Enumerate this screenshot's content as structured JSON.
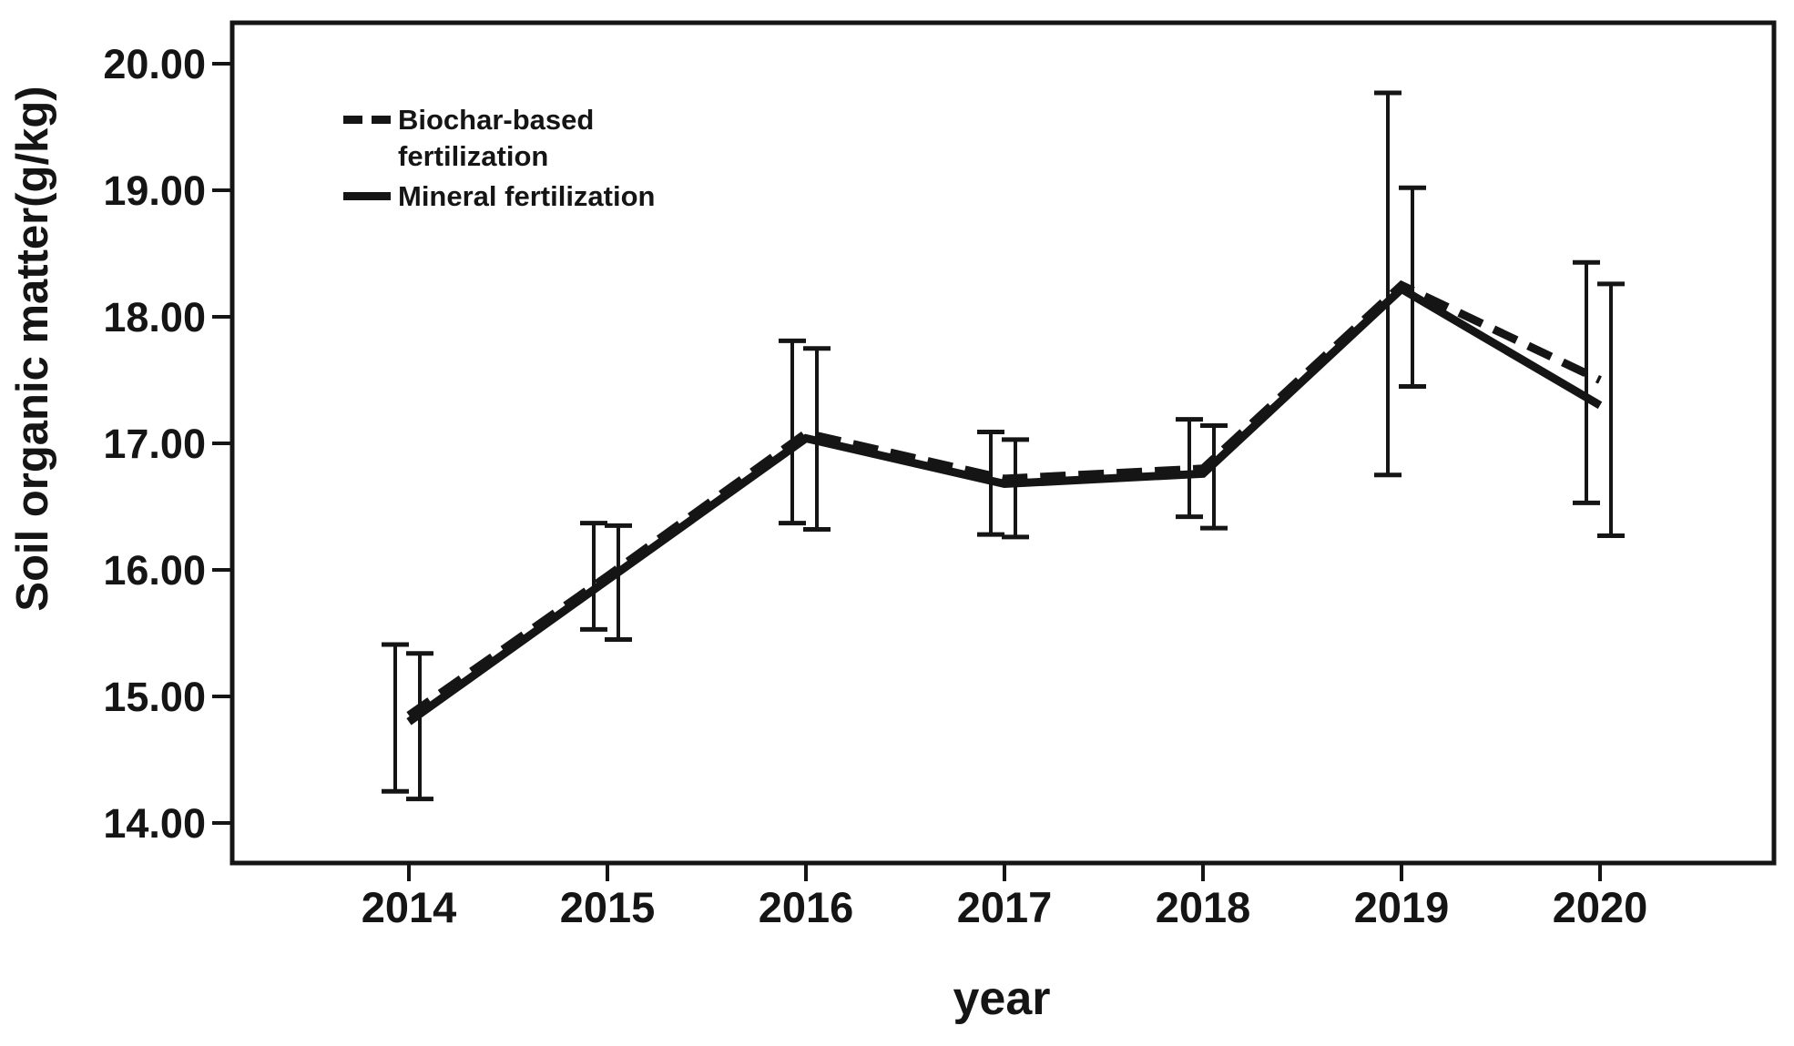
{
  "style": {
    "ink": "#151515",
    "background": "#ffffff"
  },
  "chart_data": {
    "type": "line",
    "title": "",
    "xlabel": "year",
    "ylabel": "Soil organic matter(g/kg)",
    "grid": false,
    "legend_position": "inside-upper-left",
    "x": [
      2014,
      2015,
      2016,
      2017,
      2018,
      2019,
      2020
    ],
    "x_tick_labels": [
      "2014",
      "2015",
      "2016",
      "2017",
      "2018",
      "2019",
      "2020"
    ],
    "y_ticks": [
      {
        "value": 20,
        "label": "20.00"
      },
      {
        "value": 19,
        "label": "19.00"
      },
      {
        "value": 18,
        "label": "18.00"
      },
      {
        "value": 17,
        "label": "17.00"
      },
      {
        "value": 16,
        "label": "16.00"
      },
      {
        "value": 15,
        "label": "15.00"
      },
      {
        "value": 14,
        "label": "14.00"
      }
    ],
    "ylim": [
      13.7,
      20.3
    ],
    "series": [
      {
        "name": "Biochar-based fertilization",
        "line_style": "dashed",
        "values": [
          14.85,
          15.95,
          17.08,
          16.72,
          16.8,
          18.25,
          17.5
        ],
        "err_lo": [
          14.25,
          15.53,
          16.37,
          16.28,
          16.42,
          16.75,
          16.53
        ],
        "err_hi": [
          15.41,
          16.37,
          17.81,
          17.09,
          17.19,
          19.77,
          18.43
        ]
      },
      {
        "name": "Mineral fertilization",
        "line_style": "solid",
        "values": [
          14.8,
          15.92,
          17.04,
          16.68,
          16.76,
          18.22,
          17.3
        ],
        "err_lo": [
          14.19,
          15.45,
          16.32,
          16.26,
          16.33,
          17.45,
          16.27
        ],
        "err_hi": [
          15.34,
          16.35,
          17.75,
          17.03,
          17.14,
          19.02,
          18.26
        ]
      }
    ],
    "legend": [
      {
        "label": "Biochar-based\nfertilization",
        "style": "dashed"
      },
      {
        "label": "Mineral fertilization",
        "style": "solid"
      }
    ]
  }
}
